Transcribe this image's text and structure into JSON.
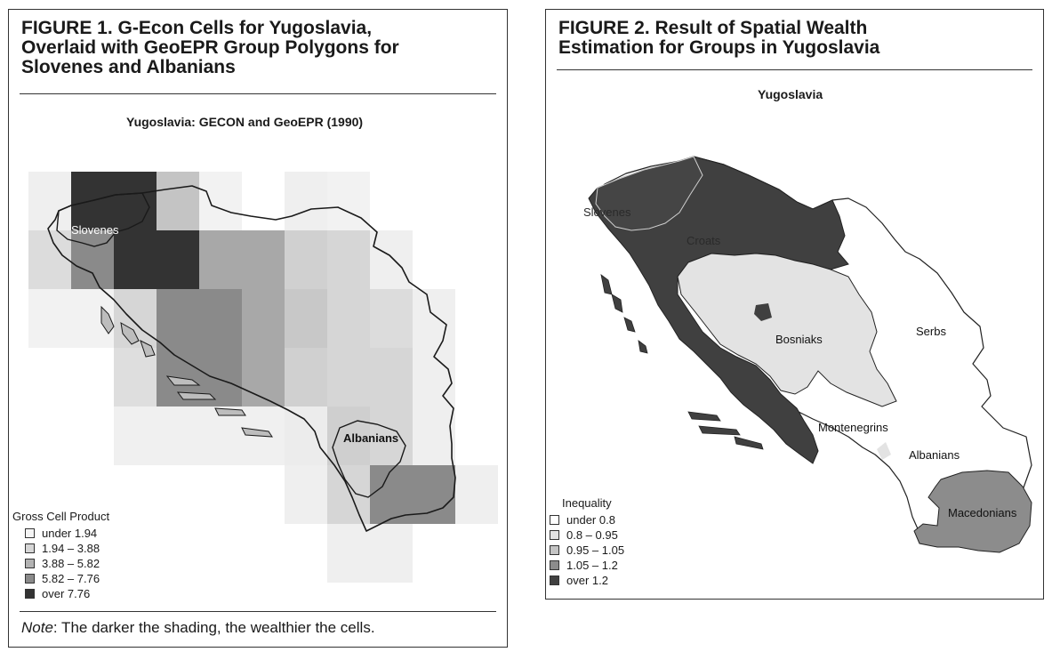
{
  "figure1": {
    "title_lines": [
      "FIGURE 1.   G-Econ Cells for Yugoslavia,",
      "Overlaid with GeoEPR Group Polygons for",
      "Slovenes and Albanians"
    ],
    "map_title": "Yugoslavia: GECON and GeoEPR (1990)",
    "labels": {
      "slovenes": "Slovenes",
      "albanians": "Albanians"
    },
    "legend": {
      "title": "Gross Cell Product",
      "items": [
        {
          "label": "under 1.94",
          "color": "#f5f5f5"
        },
        {
          "label": "1.94 – 3.88",
          "color": "#d6d6d6"
        },
        {
          "label": "3.88 – 5.82",
          "color": "#b3b3b3"
        },
        {
          "label": "5.82 – 7.76",
          "color": "#8a8a8a"
        },
        {
          "label": "over 7.76",
          "color": "#333333"
        }
      ]
    },
    "note": {
      "label": "Note",
      "text": ": The darker the shading, the wealthier the cells."
    }
  },
  "figure2": {
    "title_lines": [
      "FIGURE 2.   Result of Spatial Wealth",
      "Estimation for Groups in Yugoslavia"
    ],
    "map_title": "Yugoslavia",
    "labels": {
      "slovenes": "Slovenes",
      "croats": "Croats",
      "bosniaks": "Bosniaks",
      "serbs": "Serbs",
      "montenegrins": "Montenegrins",
      "albanians": "Albanians",
      "macedonians": "Macedonians"
    },
    "legend": {
      "title": "Inequality",
      "items": [
        {
          "label": "under 0.8",
          "color": "#ffffff"
        },
        {
          "label": "0.8 – 0.95",
          "color": "#e3e3e3"
        },
        {
          "label": "0.95 – 1.05",
          "color": "#c4c4c4"
        },
        {
          "label": "1.05 – 1.2",
          "color": "#8c8c8c"
        },
        {
          "label": "over 1.2",
          "color": "#404040"
        }
      ]
    }
  }
}
